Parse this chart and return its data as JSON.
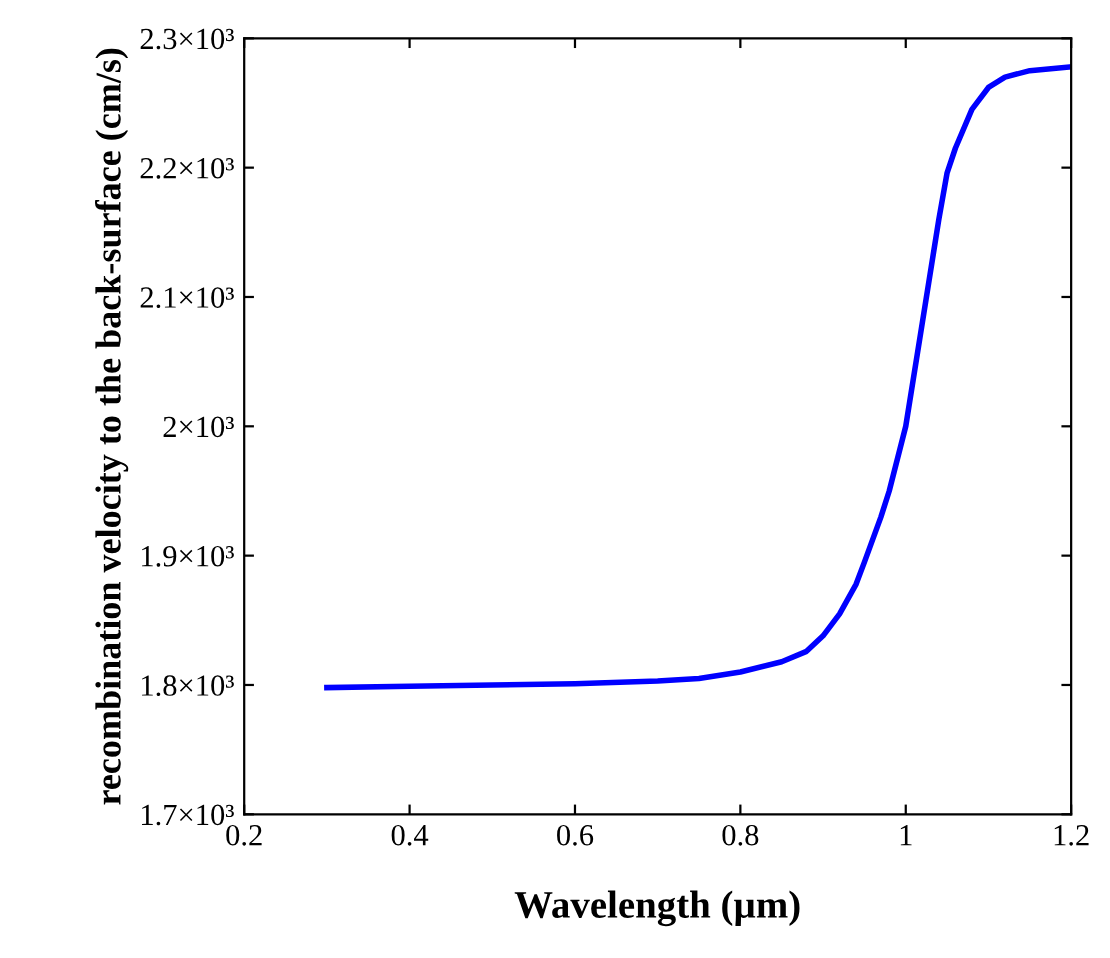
{
  "chart_data": {
    "type": "line",
    "xlabel": "Wavelength (µm)",
    "ylabel": "recombination velocity to the back-surface (cm/s)",
    "x": [
      0.3,
      0.4,
      0.5,
      0.6,
      0.7,
      0.75,
      0.8,
      0.85,
      0.88,
      0.9,
      0.92,
      0.94,
      0.95,
      0.97,
      0.98,
      1.0,
      1.02,
      1.04,
      1.05,
      1.06,
      1.08,
      1.1,
      1.12,
      1.15,
      1.2
    ],
    "series": [
      {
        "color": "#0000ff",
        "values": [
          1798,
          1799,
          1800,
          1801,
          1803,
          1805,
          1810,
          1818,
          1826,
          1838,
          1855,
          1878,
          1895,
          1930,
          1950,
          2000,
          2080,
          2160,
          2196,
          2215,
          2245,
          2262,
          2270,
          2275,
          2278
        ]
      }
    ],
    "xlim": [
      0.2,
      1.2
    ],
    "xticks": [
      0.2,
      0.4,
      0.6,
      0.8,
      1,
      1.2
    ],
    "ylim": [
      1700,
      2300
    ],
    "yticks": [
      {
        "value": 1700,
        "label": "1.7×10³"
      },
      {
        "value": 1800,
        "label": "1.8×10³"
      },
      {
        "value": 1900,
        "label": "1.9×10³"
      },
      {
        "value": 2000,
        "label": "2×10³"
      },
      {
        "value": 2100,
        "label": "2.1×10³"
      },
      {
        "value": 2200,
        "label": "2.2×10³"
      },
      {
        "value": 2300,
        "label": "2.3×10³"
      }
    ],
    "grid": false,
    "marker": "none",
    "line_style": "solid"
  }
}
